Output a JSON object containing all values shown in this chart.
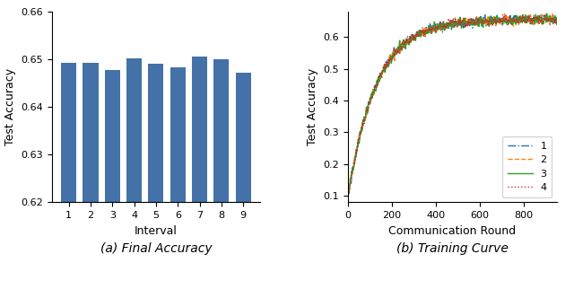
{
  "bar_values": [
    0.6492,
    0.6492,
    0.6478,
    0.6501,
    0.6491,
    0.6483,
    0.6505,
    0.65,
    0.6472
  ],
  "bar_categories": [
    1,
    2,
    3,
    4,
    5,
    6,
    7,
    8,
    9
  ],
  "bar_color": "#4472a8",
  "bar_ylim": [
    0.62,
    0.66
  ],
  "bar_yticks": [
    0.62,
    0.63,
    0.64,
    0.65,
    0.66
  ],
  "bar_xlabel": "Interval",
  "bar_ylabel": "Test Accuracy",
  "line_xlabel": "Communication Round",
  "line_ylabel": "Test Accuracy",
  "line_xlim": [
    0,
    950
  ],
  "line_ylim": [
    0.08,
    0.68
  ],
  "line_xticks": [
    0,
    200,
    400,
    600,
    800
  ],
  "line_yticks": [
    0.1,
    0.2,
    0.3,
    0.4,
    0.5,
    0.6
  ],
  "line_colors": [
    "#1f77b4",
    "#ff7f0e",
    "#2ca02c",
    "#d62728"
  ],
  "line_styles": [
    "-.",
    "--",
    "-",
    ":"
  ],
  "line_labels": [
    "1",
    "2",
    "3",
    "4"
  ],
  "n_rounds": 950,
  "seed": 42,
  "noise_scale": 0.012,
  "fig_caption": "(a) Final Accuracy",
  "fig_caption2": "(b) Training Curve",
  "fig_caption_fontsize": 10
}
